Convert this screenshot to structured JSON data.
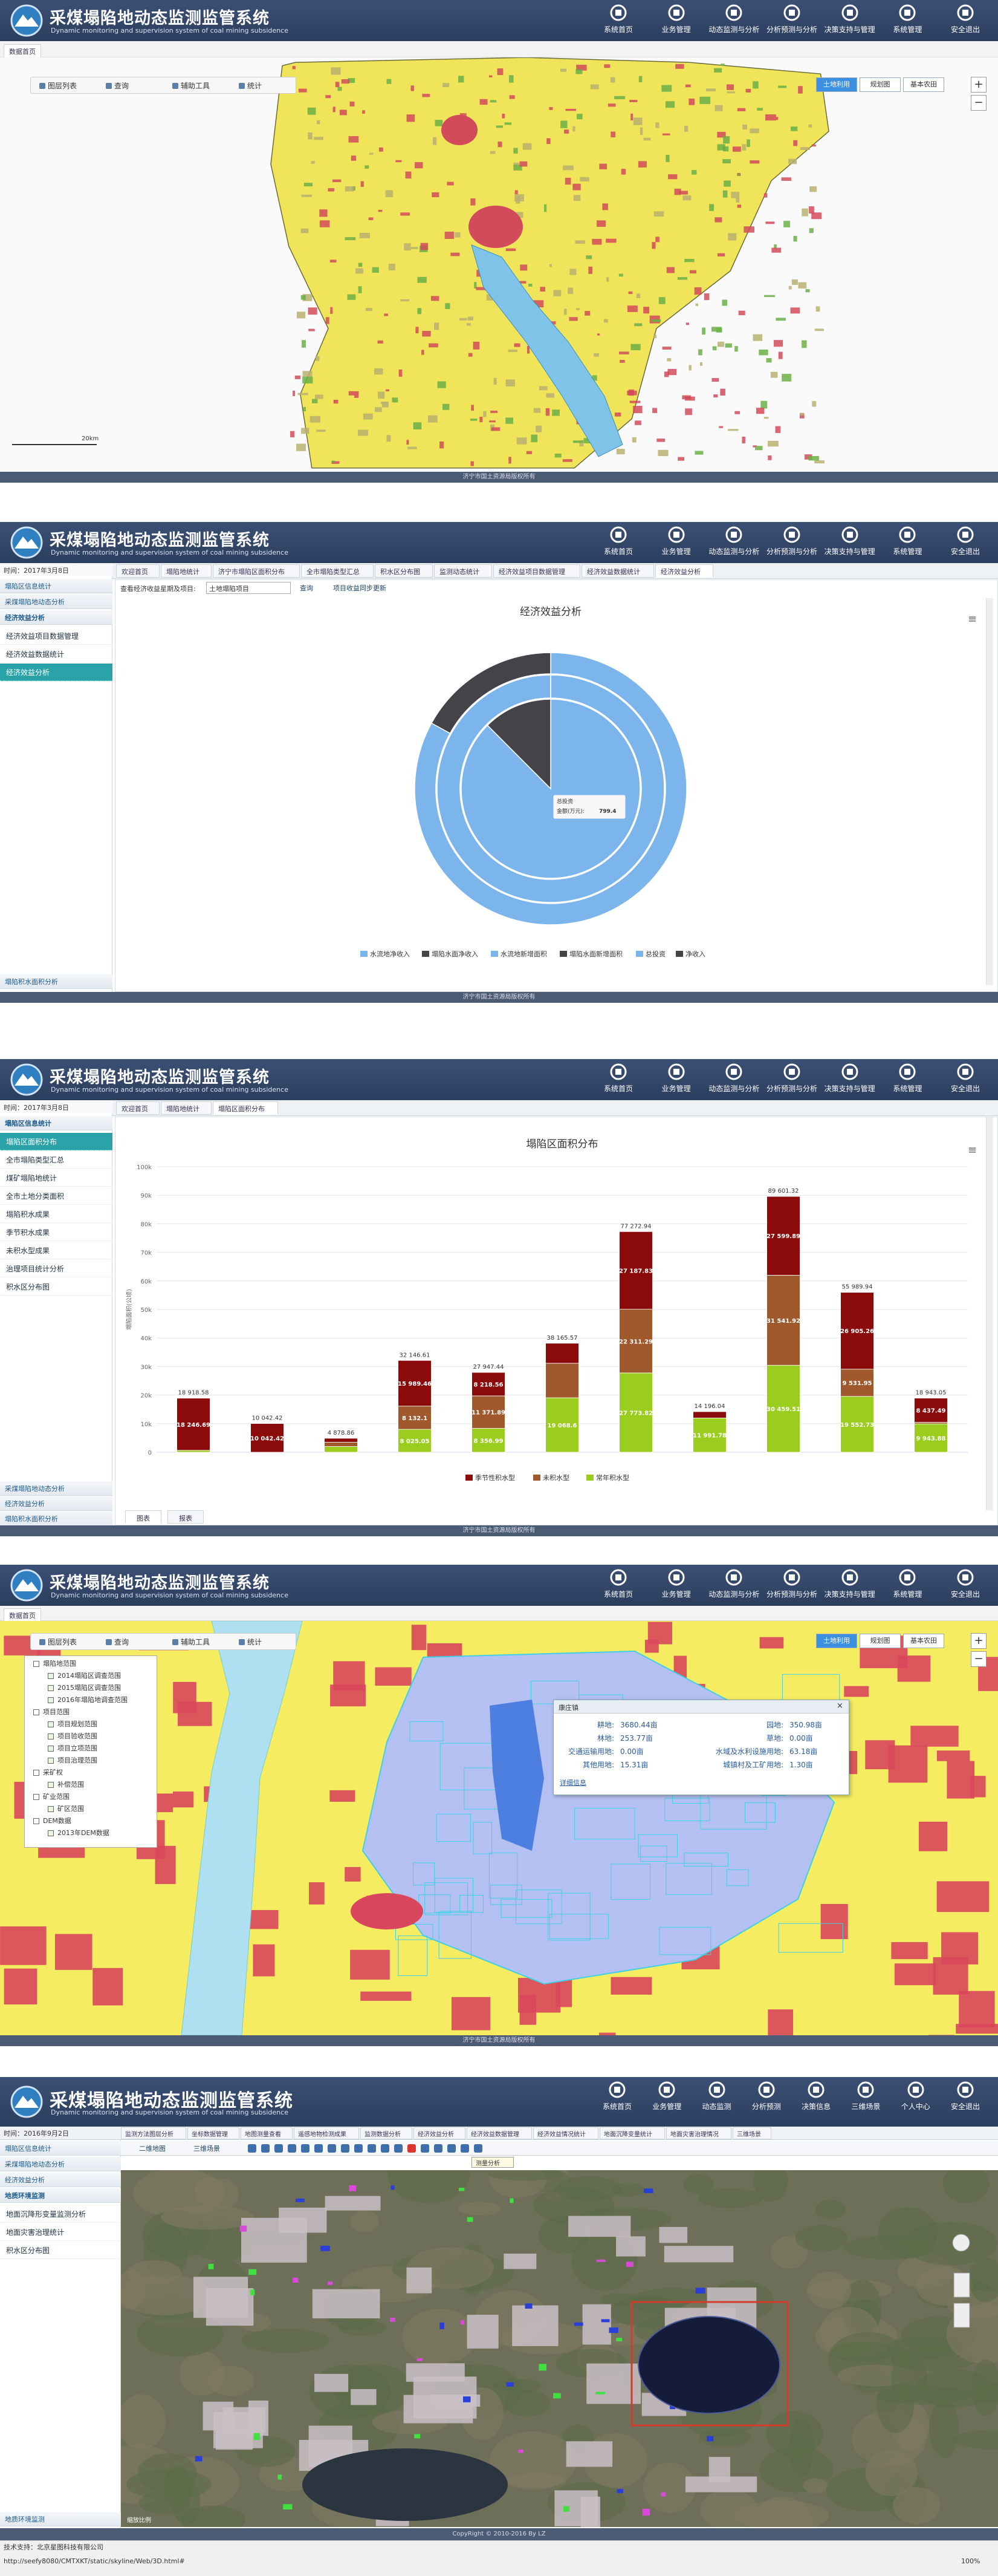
{
  "header": {
    "title": "采煤塌陷地动态监测监管系统",
    "subtitle": "Dynamic monitoring and supervision system of coal mining subsidence",
    "nav": [
      "系统首页",
      "业务管理",
      "动态监测与分析",
      "分析预测与分析",
      "决策支持与管理",
      "系统管理",
      "安全退出"
    ]
  },
  "footer": "济宁市国土资源局版权所有",
  "map_tools": {
    "tab": "数据首页",
    "tools": [
      "图层列表",
      "查询",
      "辅助工具",
      "统计"
    ],
    "layers": [
      "土地利用",
      "规划图",
      "基本农田"
    ],
    "zoom": [
      "+",
      "−"
    ],
    "scale": "20km"
  },
  "screen2": {
    "time": "时间：2017年3月8日",
    "sidebar_top": [
      "塌陷区信息统计",
      "采煤塌陷地动态分析"
    ],
    "sidebar_group": "经济效益分析",
    "sidebar_items": [
      "经济效益项目数据管理",
      "经济效益数据统计",
      "经济效益分析"
    ],
    "sidebar_bottom": [
      "塌陷积水面积分析"
    ],
    "tabs": [
      "欢迎首页",
      "塌陷地统计",
      "济宁市塌陷区面积分布",
      "全市塌陷类型汇总",
      "积水区分布图",
      "监测动态统计",
      "经济效益项目数据管理",
      "经济效益数据统计",
      "经济效益分析"
    ],
    "filter_label": "查看经济收益星期及项目:",
    "select": "土地塌陷项目",
    "query": "查询",
    "sync": "项目收益同步更新"
  },
  "screen3": {
    "time": "时间：2017年3月8日",
    "sidebar_group": "塌陷区信息统计",
    "sidebar_items": [
      "塌陷区面积分布",
      "全市塌陷类型汇总",
      "煤矿塌陷地统计",
      "全市土地分类面积",
      "塌陷积水成果",
      "季节积水成果",
      "未积水型成果",
      "治理项目统计分析",
      "积水区分布图"
    ],
    "sidebar_bottom": [
      "采煤塌陷地动态分析",
      "经济效益分析",
      "塌陷积水面积分析"
    ],
    "tabs": [
      "欢迎首页",
      "塌陷地统计",
      "塌陷区面积分布"
    ]
  },
  "screen4": {
    "tree": [
      {
        "label": "塌陷地范围",
        "children": [
          "2014塌陷区调查范围",
          "2015塌陷区调查范围",
          "2016年塌陷地调查范围"
        ]
      },
      {
        "label": "项目范围",
        "children": [
          "项目规划范围",
          "项目验收范围",
          "项目立项范围",
          "项目治理范围"
        ]
      },
      {
        "label": "采矿权",
        "children": [
          "补偿范围"
        ]
      },
      {
        "label": "矿业范围",
        "children": [
          "矿区范围"
        ]
      },
      {
        "label": "DEM数据",
        "children": [
          "2013年DEM数据"
        ]
      }
    ],
    "popup": {
      "title": "康庄镇",
      "close": "×",
      "link": "详细信息",
      "rows": [
        [
          "耕地:",
          "3680.44亩",
          "园地:",
          "350.98亩"
        ],
        [
          "林地:",
          "253.77亩",
          "草地:",
          "0.00亩"
        ],
        [
          "交通运输用地:",
          "0.00亩",
          "水域及水利设施用地:",
          "63.18亩"
        ],
        [
          "其他用地:",
          "15.31亩",
          "城镇村及工矿用地:",
          "1.30亩"
        ]
      ]
    }
  },
  "screen5": {
    "nav": [
      "系统首页",
      "业务管理",
      "动态监测",
      "分析预测",
      "决策信息",
      "三维场景",
      "个人中心",
      "安全退出"
    ],
    "time": "时间：2016年9月2日",
    "tabs": [
      "监测方法图层分析",
      "坐标数据管理",
      "地图测量查看",
      "遥感地物检测成果",
      "监测数据分析",
      "经济效益分析",
      "经济效益数据管理",
      "经济效益情况统计",
      "地面沉降变量统计",
      "地面灾害治理情况",
      "三维场景"
    ],
    "view_tabs": [
      "二维地图",
      "三维场景"
    ],
    "tooltip": "测量分析",
    "sidebar_top": [
      "塌陷区信息统计",
      "采煤塌陷地动态分析",
      "经济效益分析"
    ],
    "sidebar_group": "地质环境监测",
    "sidebar_items": [
      "地面沉降形变量监测分析",
      "地面灾害治理统计",
      "积水区分布图"
    ],
    "sidebar_bottom": [
      "地质环境监测"
    ],
    "scale": "缩放比例",
    "copyright": "CopyRight © 2010-2016 By LZ",
    "support": "技术支持：北京星图科技有限公司",
    "url": "http://seefy8080/CMTXKT/static/skyline/Web/3D.html#",
    "zoom_level": "100%"
  },
  "chart_data": [
    {
      "type": "pie",
      "title": "经济效益分析",
      "menu": "≡",
      "rings": [
        {
          "names": [
            "水流地净收入",
            "塌陷水面净收入"
          ],
          "values": [
            83,
            17
          ],
          "colors": [
            "#7cb5ec",
            "#434348"
          ]
        },
        {
          "names": [
            "水流地新增面积",
            "塌陷水面新增面积"
          ],
          "values": [
            100,
            0
          ],
          "colors": [
            "#7cb5ec",
            "#434348"
          ]
        },
        {
          "names": [
            "总投资",
            "净收入"
          ],
          "values": [
            799.4,
            114
          ],
          "colors": [
            "#7cb5ec",
            "#434348"
          ]
        }
      ],
      "tooltip": {
        "title": "总投资",
        "label": "金额(万元):"
      }
    },
    {
      "type": "bar",
      "stacked": true,
      "title": "塌陷区面积分布",
      "y_label": "塌陷面积(公顷)",
      "menu": "≡",
      "categories": [
        null,
        null,
        null,
        null,
        null,
        null,
        null,
        null,
        null,
        null,
        null
      ],
      "ylim": [
        0,
        100000
      ],
      "yticks": [
        0,
        {
          "value": 10000,
          "label": "10k"
        },
        {
          "value": 20000,
          "label": "20k"
        },
        {
          "value": 30000,
          "label": "30k"
        },
        {
          "value": 40000,
          "label": "40k"
        },
        {
          "value": 50000,
          "label": "50k"
        },
        {
          "value": 60000,
          "label": "60k"
        },
        {
          "value": 70000,
          "label": "70k"
        },
        {
          "value": 80000,
          "label": "80k"
        },
        {
          "value": 90000,
          "label": "90k"
        },
        {
          "value": 100000,
          "label": "100k"
        }
      ],
      "grid": true,
      "series": [
        {
          "name": "季节性积水型",
          "color": "#8b0a0a",
          "values": [
            18246.69,
            10042.42,
            1378.86,
            15989.46,
            8218.56,
            7000,
            27187.83,
            2204.26,
            27599.89,
            26905.26,
            8437.49
          ],
          "value_labels": [
            "18 246.69",
            "10 042.42",
            null,
            "15 989.46",
            "8 218.56",
            null,
            "27 187.83",
            null,
            "27 599.89",
            "26 905.26",
            "8 437.49"
          ]
        },
        {
          "name": "未积水型",
          "color": "#a0582d",
          "values": [
            0,
            0,
            1500,
            8132.1,
            11371.89,
            12096.97,
            22311.29,
            0,
            31541.92,
            9531.95,
            561.68
          ],
          "value_labels": [
            null,
            null,
            null,
            "8 132.1",
            "11 371.89",
            null,
            "22 311.29",
            null,
            "31 541.92",
            "9 531.95",
            null
          ]
        },
        {
          "name": "常年积水型",
          "color": "#9acd1e",
          "values": [
            671.89,
            0,
            2000,
            8025.05,
            8356.99,
            19068.6,
            27773.82,
            11991.78,
            30459.51,
            19552.73,
            9943.88
          ],
          "value_labels": [
            null,
            null,
            null,
            "8 025.05",
            "8 356.99",
            "19 068.6",
            "27 773.82",
            "11 991.78",
            "30 459.51",
            "19 552.73",
            "9 943.88"
          ]
        }
      ],
      "totals": {
        "values": [
          18918.58,
          10042.42,
          4878.86,
          32146.61,
          27947.44,
          38165.57,
          77272.94,
          14196.04,
          89601.32,
          55989.94,
          18943.05
        ],
        "value_labels": [
          "18 918.58",
          "10 042.42",
          "4 878.86",
          "32 146.61",
          "27 947.44",
          "38 165.57",
          "77 272.94",
          "14 196.04",
          "89 601.32",
          "55 989.94",
          "18 943.05"
        ]
      },
      "tabs": [
        "图表",
        "报表"
      ]
    }
  ]
}
